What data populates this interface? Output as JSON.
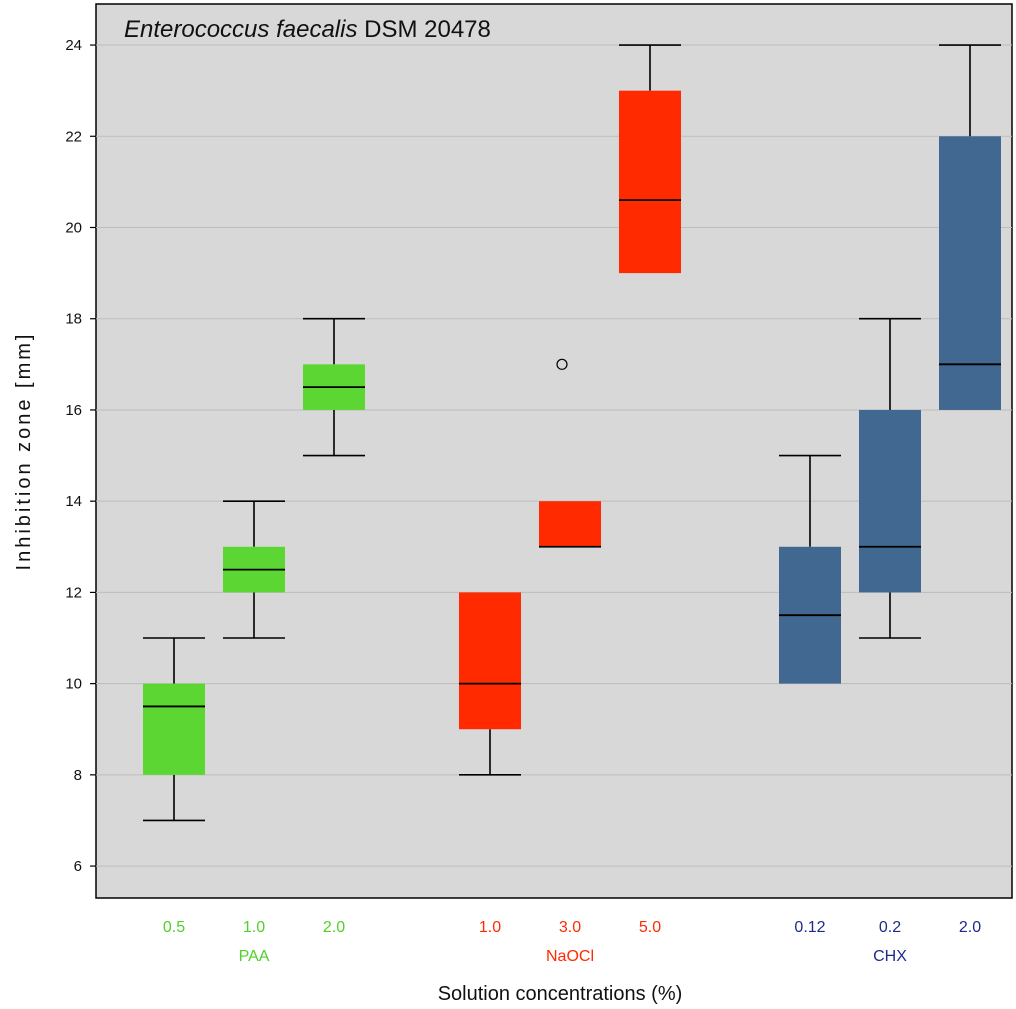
{
  "chart_data": {
    "type": "box",
    "title_italic": "Enterococcus faecalis",
    "title_rest": " DSM 20478",
    "xlabel": "Solution concentrations (%)",
    "ylabel": "Inhibition zone [mm]",
    "ylim": [
      5.3,
      24.9
    ],
    "yticks": [
      6,
      8,
      10,
      12,
      14,
      16,
      18,
      20,
      22,
      24
    ],
    "grid": true,
    "groups": [
      {
        "name": "PAA",
        "color": "#5cd632",
        "label_color": "#4fd02a",
        "boxes": [
          {
            "label": "0.5",
            "min": 7,
            "q1": 8,
            "median": 9.5,
            "q3": 10,
            "max": 11,
            "outliers": []
          },
          {
            "label": "1.0",
            "min": 11,
            "q1": 12,
            "median": 12.5,
            "q3": 13,
            "max": 14,
            "outliers": []
          },
          {
            "label": "2.0",
            "min": 15,
            "q1": 16,
            "median": 16.5,
            "q3": 17,
            "max": 18,
            "outliers": []
          }
        ]
      },
      {
        "name": "NaOCl",
        "color": "#ff2a00",
        "label_color": "#ff2a00",
        "boxes": [
          {
            "label": "1.0",
            "min": 8,
            "q1": 9,
            "median": 10,
            "q3": 12,
            "max": 12,
            "outliers": []
          },
          {
            "label": "3.0",
            "min": 13,
            "q1": 13,
            "median": 13,
            "q3": 14,
            "max": 14,
            "outliers": [
              17
            ]
          },
          {
            "label": "5.0",
            "min": 19,
            "q1": 19,
            "median": 20.6,
            "q3": 23,
            "max": 24,
            "outliers": []
          }
        ]
      },
      {
        "name": "CHX",
        "color": "#416890",
        "label_color": "#1e2a8a",
        "boxes": [
          {
            "label": "0.12",
            "min": 10,
            "q1": 10,
            "median": 11.5,
            "q3": 13,
            "max": 15,
            "outliers": []
          },
          {
            "label": "0.2",
            "min": 11,
            "q1": 12,
            "median": 13,
            "q3": 16,
            "max": 18,
            "outliers": []
          },
          {
            "label": "2.0",
            "min": 16,
            "q1": 16,
            "median": 17,
            "q3": 22,
            "max": 24,
            "outliers": []
          }
        ]
      }
    ]
  }
}
